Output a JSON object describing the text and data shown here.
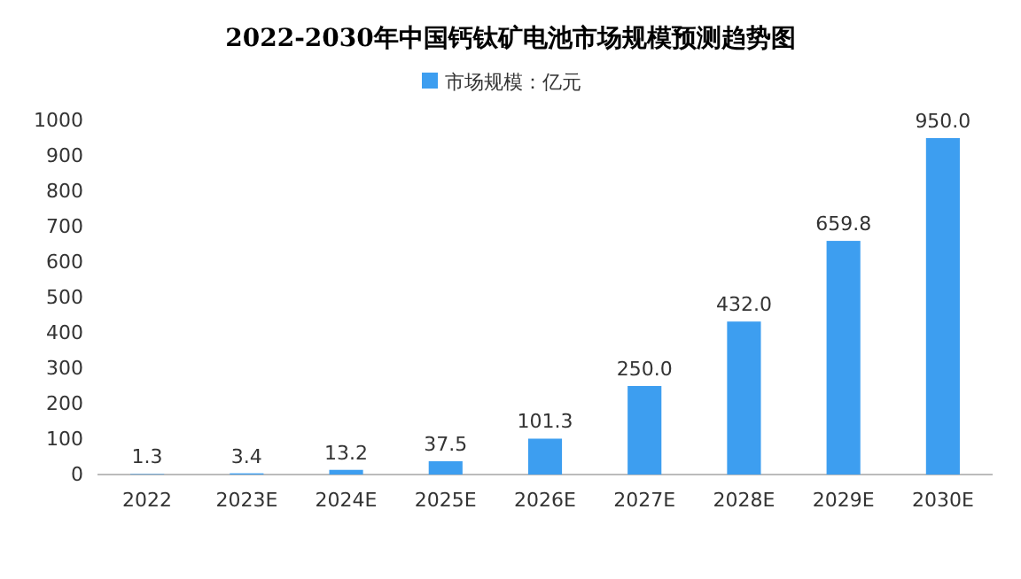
{
  "chart_data": {
    "type": "bar",
    "title": "2022-2030年中国钙钛矿电池市场规模预测趋势图",
    "categories": [
      "2022",
      "2023E",
      "2024E",
      "2025E",
      "2026E",
      "2027E",
      "2028E",
      "2029E",
      "2030E"
    ],
    "series": [
      {
        "name": "市场规模：亿元",
        "color": "#3d9ef0",
        "values": [
          1.3,
          3.4,
          13.2,
          37.5,
          101.3,
          250,
          432,
          659.8,
          950
        ],
        "value_labels": [
          "1.3",
          "3.4",
          "13.2",
          "37.5",
          "101.3",
          "250.0",
          "432.0",
          "659.8",
          "950.0"
        ]
      }
    ],
    "ylim": [
      0,
      1000
    ],
    "yticks": [
      0,
      100,
      200,
      300,
      400,
      500,
      600,
      700,
      800,
      900,
      1000
    ],
    "grid": false,
    "legend": "top"
  }
}
